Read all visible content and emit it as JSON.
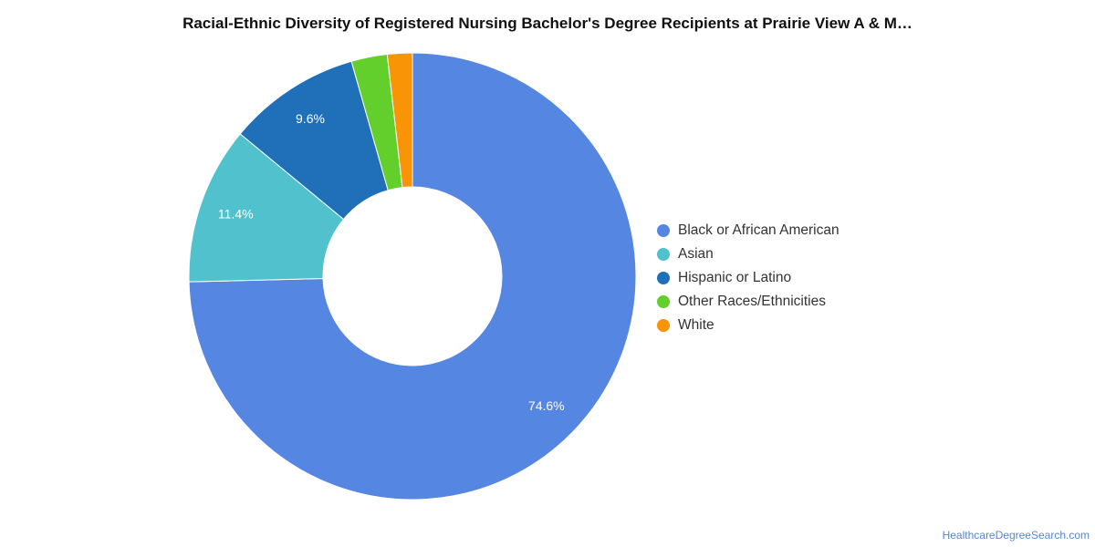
{
  "chart_data": {
    "type": "pie",
    "donut": true,
    "title": "Racial-Ethnic Diversity of Registered Nursing Bachelor's Degree Recipients at Prairie View A & M…",
    "categories": [
      "Black or African American",
      "Asian",
      "Hispanic or Latino",
      "Other Races/Ethnicities",
      "White"
    ],
    "values": [
      74.6,
      11.4,
      9.6,
      2.6,
      1.8
    ],
    "data_labels": [
      "74.6%",
      "11.4%",
      "9.6%",
      "",
      ""
    ],
    "colors": [
      "#5486e2",
      "#50c1cd",
      "#1f70b9",
      "#62cf2c",
      "#f89406"
    ],
    "legend_position": "right"
  },
  "source": "HealthcareDegreeSearch.com"
}
